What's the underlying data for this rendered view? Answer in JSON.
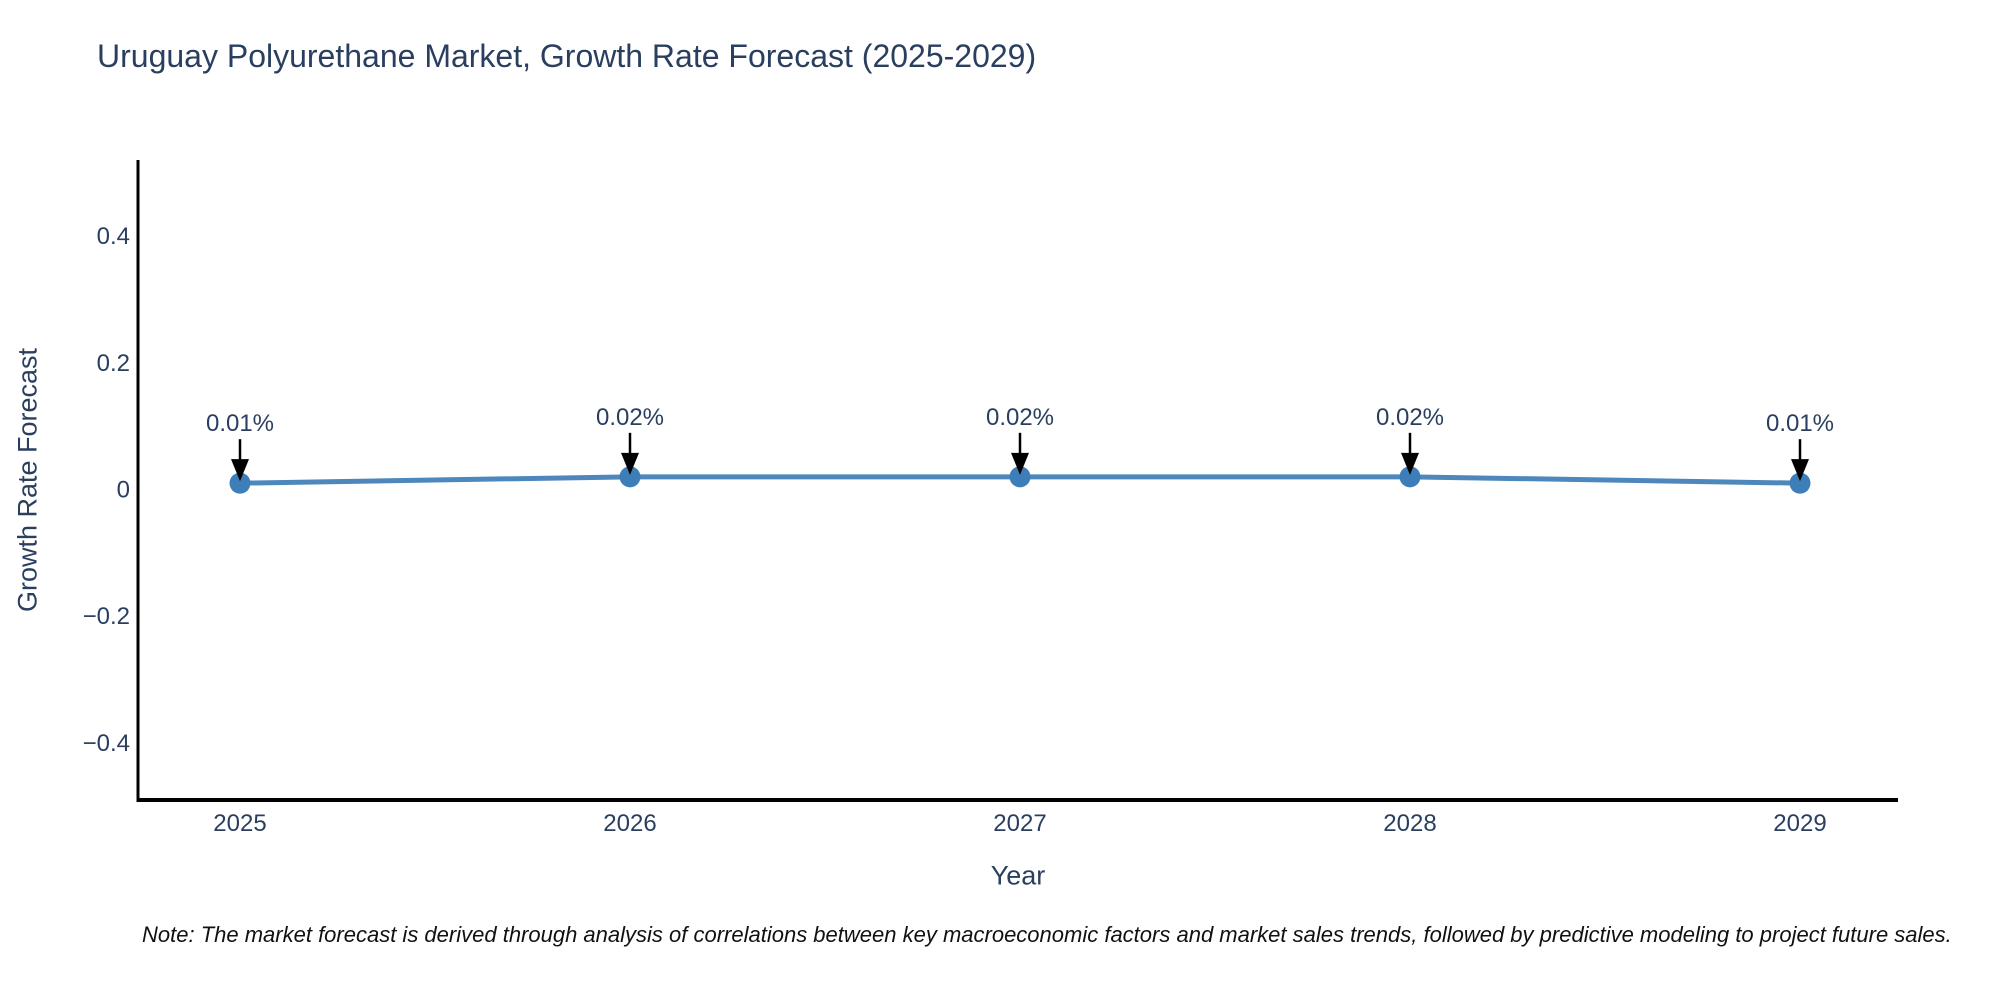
{
  "title": "Uruguay Polyurethane Market, Growth Rate Forecast (2025-2029)",
  "note": "Note: The market forecast is derived through analysis of correlations between key macroeconomic factors and market sales trends, followed by predictive modeling to project future sales.",
  "chart_data": {
    "type": "line",
    "title": "Uruguay Polyurethane Market, Growth Rate Forecast (2025-2029)",
    "xlabel": "Year",
    "ylabel": "Growth Rate Forecast",
    "categories": [
      "2025",
      "2026",
      "2027",
      "2028",
      "2029"
    ],
    "series": [
      {
        "name": "Growth Rate Forecast",
        "values": [
          0.01,
          0.02,
          0.02,
          0.02,
          0.01
        ],
        "point_labels": [
          "0.01%",
          "0.02%",
          "0.02%",
          "0.02%",
          "0.01%"
        ]
      }
    ],
    "y_tick_values": [
      0.4,
      0.2,
      0,
      -0.2,
      -0.4
    ],
    "y_tick_labels": [
      "0.4",
      "0.2",
      "0",
      "−0.2",
      "−0.4"
    ],
    "ylim": [
      -0.49,
      0.52
    ],
    "grid": false,
    "legend": false,
    "annotation_arrows": true,
    "colors": {
      "line": "#4d87bb",
      "marker": "#3d7eb8",
      "axis": "#000000",
      "tick_text": "#2a3f5f",
      "label_text": "#2a3f5f",
      "arrow": "#000000"
    }
  }
}
